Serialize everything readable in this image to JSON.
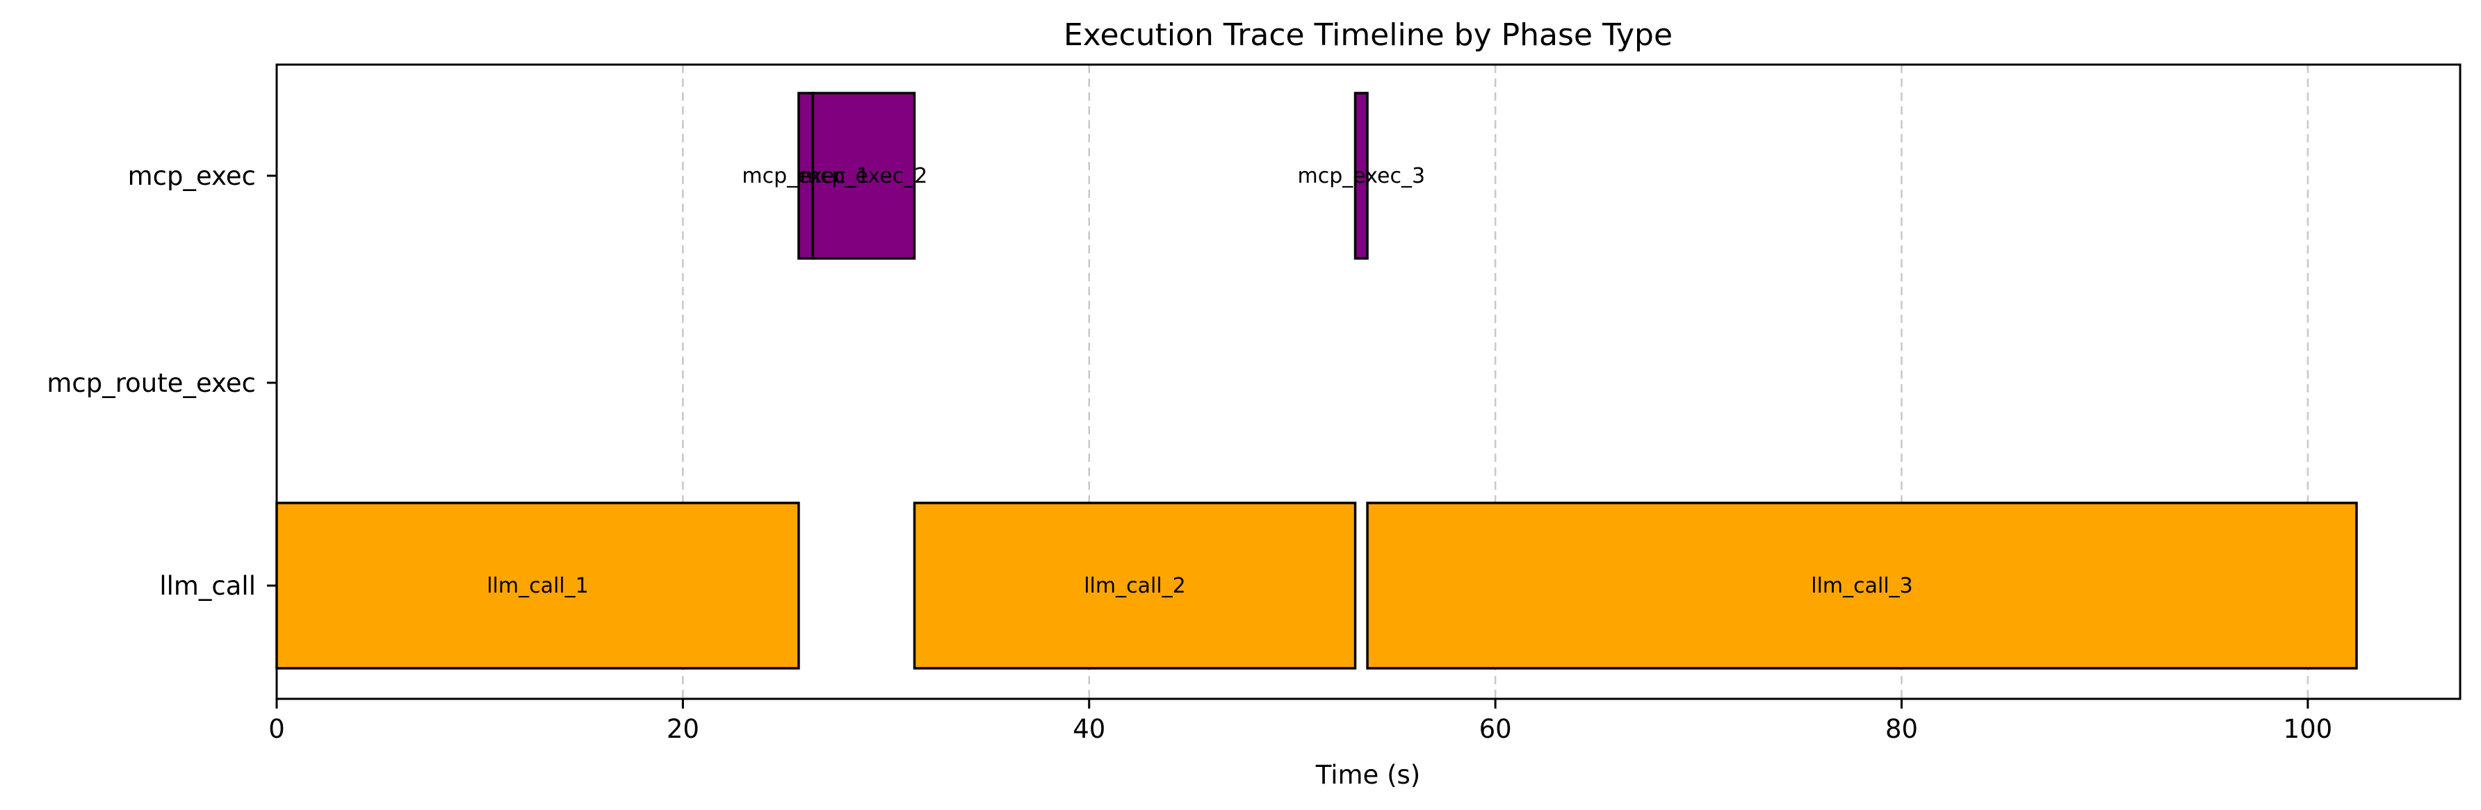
{
  "chart_data": {
    "type": "bar",
    "orientation": "horizontal-timeline",
    "title": "Execution Trace Timeline by Phase Type",
    "xlabel": "Time (s)",
    "ylabel": "",
    "xlim": [
      0,
      107.5
    ],
    "xticks": [
      0,
      20,
      40,
      60,
      80,
      100
    ],
    "xtick_labels": [
      "0",
      "20",
      "40",
      "60",
      "80",
      "100"
    ],
    "categories": [
      "llm_call",
      "mcp_route_exec",
      "mcp_exec"
    ],
    "grid": "x-dashed",
    "colors": {
      "llm_call": "#FFA500",
      "mcp_exec": "#800080",
      "edge": "#000000"
    },
    "segments": [
      {
        "label": "llm_call_1",
        "category": "llm_call",
        "start": 0.0,
        "end": 25.7
      },
      {
        "label": "llm_call_2",
        "category": "llm_call",
        "start": 31.4,
        "end": 53.1
      },
      {
        "label": "llm_call_3",
        "category": "llm_call",
        "start": 53.7,
        "end": 102.4
      },
      {
        "label": "mcp_exec_1",
        "category": "mcp_exec",
        "start": 25.7,
        "end": 26.4
      },
      {
        "label": "mcp_exec_2",
        "category": "mcp_exec",
        "start": 26.4,
        "end": 31.4
      },
      {
        "label": "mcp_exec_3",
        "category": "mcp_exec",
        "start": 53.1,
        "end": 53.7
      }
    ]
  }
}
